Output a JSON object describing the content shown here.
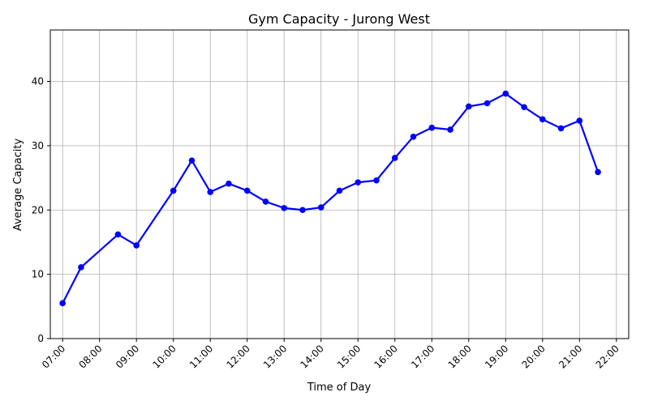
{
  "chart_data": {
    "type": "line",
    "title": "Gym Capacity - Jurong West",
    "xlabel": "Time of Day",
    "ylabel": "Average Capacity",
    "xlim": [
      "06:40",
      "22:20"
    ],
    "ylim": [
      0,
      48
    ],
    "x_ticks": [
      "07:00",
      "08:00",
      "09:00",
      "10:00",
      "11:00",
      "12:00",
      "13:00",
      "14:00",
      "15:00",
      "16:00",
      "17:00",
      "18:00",
      "19:00",
      "20:00",
      "21:00",
      "22:00"
    ],
    "y_ticks": [
      0,
      10,
      20,
      30,
      40
    ],
    "grid": true,
    "series": [
      {
        "color": "#0000ff",
        "marker": "circle",
        "x": [
          "07:00",
          "07:30",
          "08:30",
          "09:00",
          "10:00",
          "10:30",
          "11:00",
          "11:30",
          "12:00",
          "12:30",
          "13:00",
          "13:30",
          "14:00",
          "14:30",
          "15:00",
          "15:30",
          "16:00",
          "16:30",
          "17:00",
          "17:30",
          "18:00",
          "18:30",
          "19:00",
          "19:30",
          "20:00",
          "20:30",
          "21:00",
          "21:30"
        ],
        "values": [
          5.5,
          11.1,
          16.2,
          14.5,
          23.0,
          27.7,
          22.8,
          24.1,
          23.0,
          21.3,
          20.3,
          20.0,
          20.4,
          23.0,
          24.3,
          24.6,
          28.1,
          31.4,
          32.8,
          32.5,
          36.1,
          36.6,
          38.1,
          36.0,
          34.1,
          32.7,
          33.9,
          25.9
        ]
      }
    ]
  }
}
